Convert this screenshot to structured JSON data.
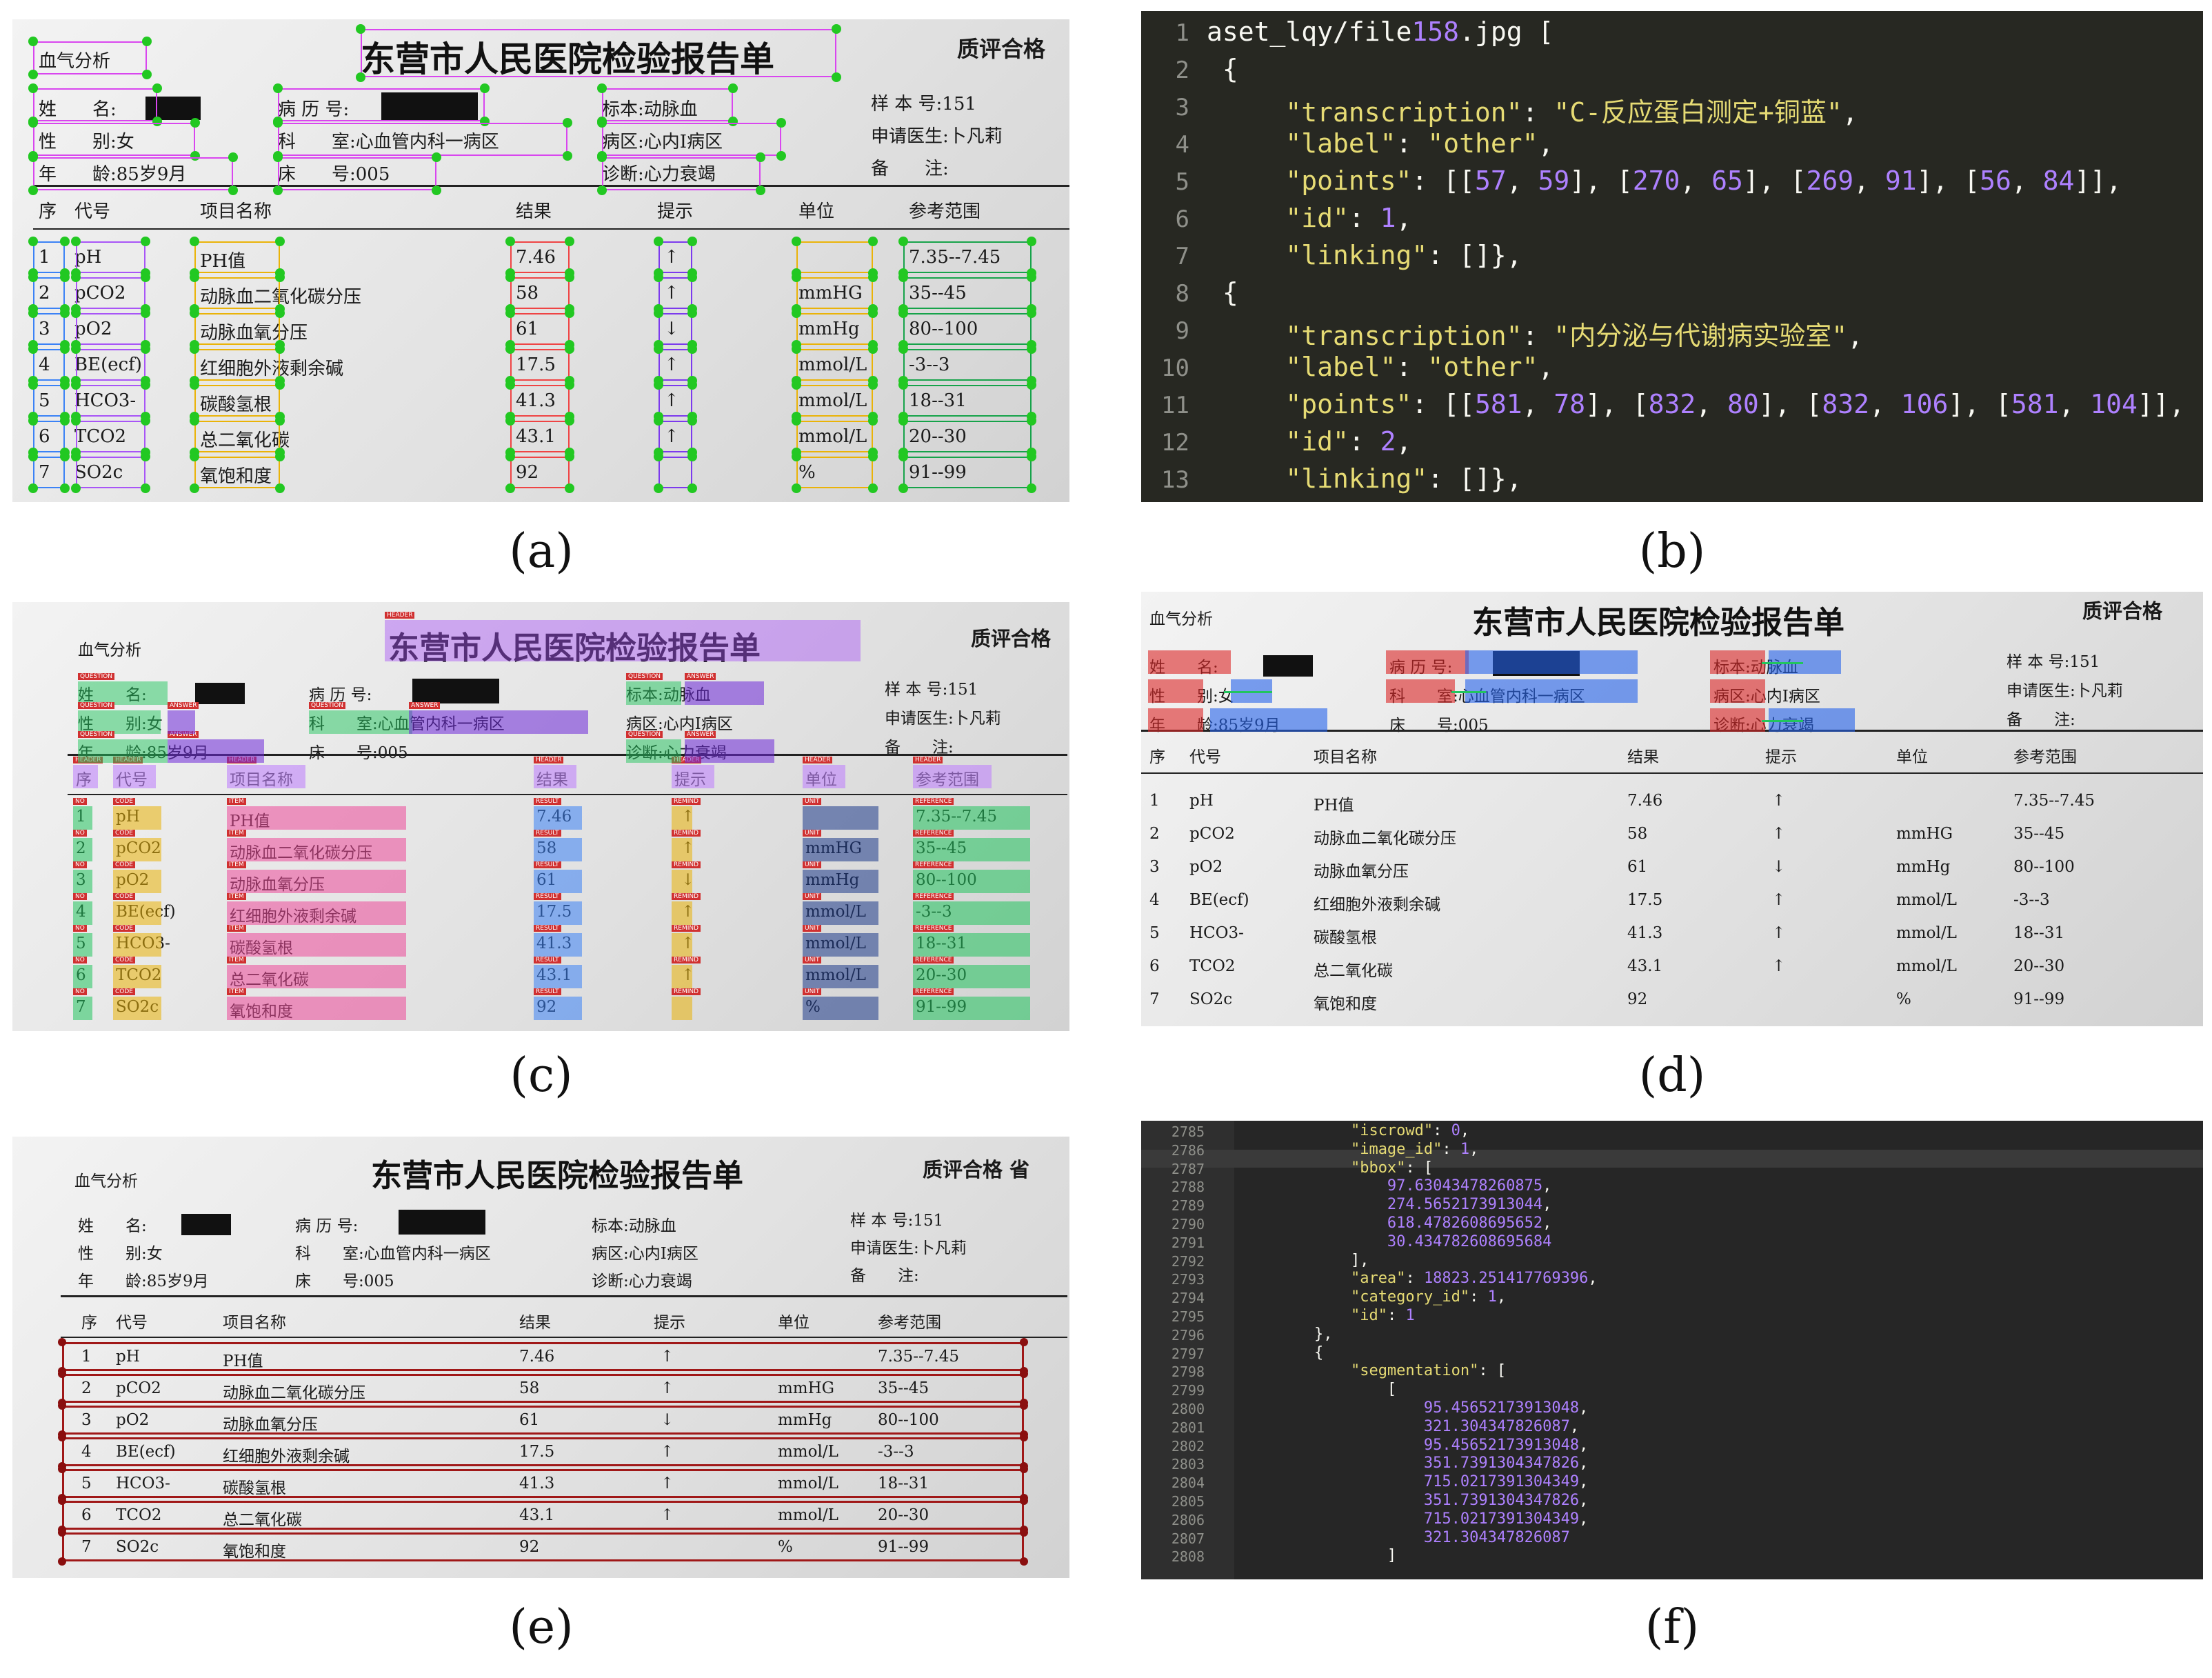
{
  "labels": [
    "(a)",
    "(b)",
    "(c)",
    "(d)",
    "(e)",
    "(f)"
  ],
  "report": {
    "title": "东营市人民医院检验报告单",
    "quality": "质评合格",
    "quality_e": "质评合格 省",
    "dept_mark": "血气分析",
    "name_label": "姓　　名:",
    "sex_label": "性　　别:",
    "sex_value": "女",
    "age_label": "年　　龄:",
    "age_value": "85岁9月",
    "record_label": "病 历 号:",
    "dept_label": "科　　室:",
    "dept_value": "心血管内科一病区",
    "bed_label": "床　　号:",
    "bed_value": "005",
    "specimen_label": "标本:",
    "specimen_value": "动脉血",
    "ward_label": "病区:",
    "ward_value": "心内Ⅰ病区",
    "diag_label": "诊断:",
    "diag_value": "心力衰竭",
    "sample_label": "样 本 号:",
    "sample_value": "151",
    "doctor_label": "申请医生:",
    "doctor_value": "卜凡莉",
    "note_label": "备　　注:",
    "headers": [
      "序",
      "代号",
      "项目名称",
      "结果",
      "提示",
      "单位",
      "参考范围"
    ],
    "rows": [
      {
        "no": "1",
        "code": "pH",
        "item": "PH值",
        "result": "7.46",
        "hint": "↑",
        "unit": "",
        "ref": "7.35--7.45"
      },
      {
        "no": "2",
        "code": "pCO2",
        "item": "动脉血二氧化碳分压",
        "result": "58",
        "hint": "↑",
        "unit": "mmHG",
        "ref": "35--45"
      },
      {
        "no": "3",
        "code": "pO2",
        "item": "动脉血氧分压",
        "result": "61",
        "hint": "↓",
        "unit": "mmHg",
        "ref": "80--100"
      },
      {
        "no": "4",
        "code": "BE(ecf)",
        "item": "红细胞外液剩余碱",
        "result": "17.5",
        "hint": "↑",
        "unit": "mmol/L",
        "ref": "-3--3"
      },
      {
        "no": "5",
        "code": "HCO3-",
        "item": "碳酸氢根",
        "result": "41.3",
        "hint": "↑",
        "unit": "mmol/L",
        "ref": "18--31"
      },
      {
        "no": "6",
        "code": "TCO2",
        "item": "总二氧化碳",
        "result": "43.1",
        "hint": "↑",
        "unit": "mmol/L",
        "ref": "20--30"
      },
      {
        "no": "7",
        "code": "SO2c",
        "item": "氧饱和度",
        "result": "92",
        "hint": "",
        "unit": "%",
        "ref": "91--99"
      }
    ]
  },
  "code_b": {
    "line_numbers": [
      "1",
      "2",
      "3",
      "4",
      "5",
      "6",
      "7",
      "8",
      "9",
      "10",
      "11",
      "12",
      "13"
    ],
    "lines": [
      "aset_lqy/file158.jpg [",
      " {",
      "     \"transcription\": \"C-反应蛋白测定+铜蓝\",",
      "     \"label\": \"other\",",
      "     \"points\": [[57, 59], [270, 65], [269, 91], [56, 84]],",
      "     \"id\": 1,",
      "     \"linking\": []},",
      " {",
      "     \"transcription\": \"内分泌与代谢病实验室\",",
      "     \"label\": \"other\",",
      "     \"points\": [[581, 78], [832, 80], [832, 106], [581, 104]],",
      "     \"id\": 2,",
      "     \"linking\": []},"
    ]
  },
  "code_f": {
    "line_numbers": [
      "2785",
      "2786",
      "2787",
      "2788",
      "2789",
      "2790",
      "2791",
      "2792",
      "2793",
      "2794",
      "2795",
      "2796",
      "2797",
      "2798",
      "2799",
      "2800",
      "2801",
      "2802",
      "2803",
      "2804",
      "2805",
      "2806",
      "2807",
      "2808"
    ],
    "lines": [
      "            \"iscrowd\": 0,",
      "            \"image_id\": 1,",
      "            \"bbox\": [",
      "                97.63043478260875,",
      "                274.5652173913044,",
      "                618.4782608695652,",
      "                30.434782608695684",
      "            ],",
      "            \"area\": 18823.251417769396,",
      "            \"category_id\": 1,",
      "            \"id\": 1",
      "        },",
      "        {",
      "            \"segmentation\": [",
      "                [",
      "                    95.45652173913048,",
      "                    321.304347826087,",
      "                    95.45652173913048,",
      "                    351.7391304347826,",
      "                    715.0217391304349,",
      "                    351.7391304347826,",
      "                    715.0217391304349,",
      "                    321.304347826087",
      "                ]"
    ]
  }
}
